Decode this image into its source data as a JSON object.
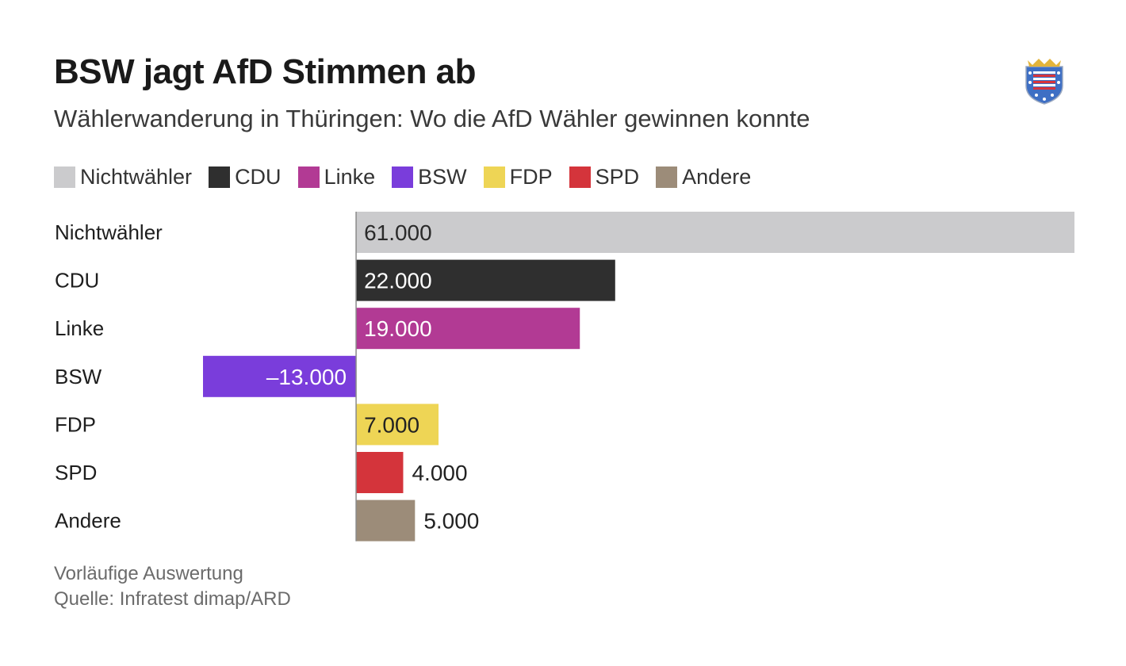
{
  "header": {
    "title": "BSW jagt AfD Stimmen ab",
    "subtitle": "Wählerwanderung in Thüringen: Wo die AfD Wähler gewinnen konnte"
  },
  "crest": {
    "icon": "thuringia-coat-of-arms-icon"
  },
  "legend": {
    "items": [
      {
        "label": "Nichtwähler",
        "color": "#cbcbcd"
      },
      {
        "label": "CDU",
        "color": "#2f2f2f"
      },
      {
        "label": "Linke",
        "color": "#b23a94"
      },
      {
        "label": "BSW",
        "color": "#7a3ddb"
      },
      {
        "label": "FDP",
        "color": "#eed555"
      },
      {
        "label": "SPD",
        "color": "#d4343b"
      },
      {
        "label": "Andere",
        "color": "#9c8c79"
      }
    ]
  },
  "chart_data": {
    "type": "bar",
    "orientation": "horizontal",
    "categories": [
      "Nichtwähler",
      "CDU",
      "Linke",
      "BSW",
      "FDP",
      "SPD",
      "Andere"
    ],
    "values": [
      61000,
      22000,
      19000,
      -13000,
      7000,
      4000,
      5000
    ],
    "value_labels": [
      "61.000",
      "22.000",
      "19.000",
      "–13.000",
      "7.000",
      "4.000",
      "5.000"
    ],
    "colors": [
      "#cbcbcd",
      "#2f2f2f",
      "#b23a94",
      "#7a3ddb",
      "#eed555",
      "#d4343b",
      "#9c8c79"
    ],
    "label_colors": [
      "#2a2a2a",
      "#ffffff",
      "#ffffff",
      "#ffffff",
      "#222222",
      "#222222",
      "#222222"
    ],
    "xlim": [
      -13000,
      61000
    ],
    "grid": false,
    "legend_position": "top-left"
  },
  "notes": {
    "line1": "Vorläufige Auswertung",
    "line2": "Quelle: Infratest dimap/ARD"
  }
}
